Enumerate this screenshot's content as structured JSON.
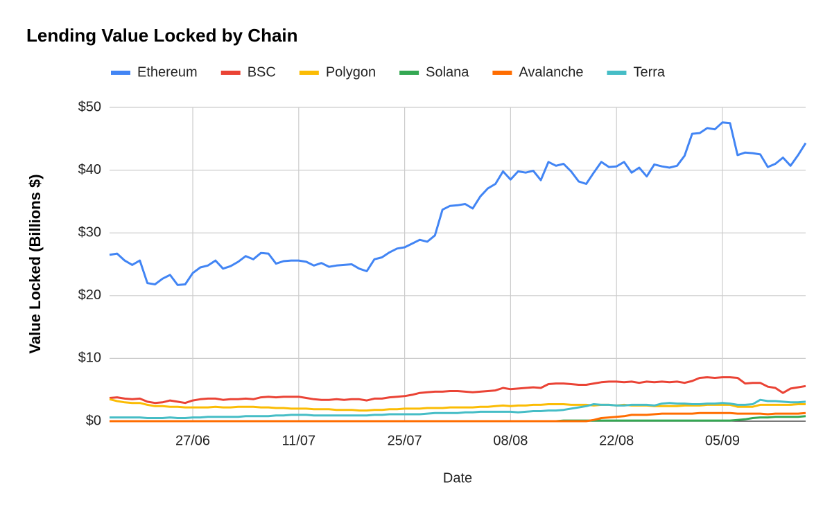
{
  "chart_data": {
    "type": "line",
    "title": "Lending Value Locked by Chain",
    "x_label": "Date",
    "y_label": "Value Locked (Billions $)",
    "categories": [
      null,
      null,
      null,
      null,
      null,
      null,
      null,
      null,
      null,
      null,
      null,
      "27/06",
      null,
      null,
      null,
      null,
      null,
      null,
      null,
      null,
      null,
      null,
      null,
      null,
      null,
      "11/07",
      null,
      null,
      null,
      null,
      null,
      null,
      null,
      null,
      null,
      null,
      null,
      null,
      null,
      "25/07",
      null,
      null,
      null,
      null,
      null,
      null,
      null,
      null,
      null,
      null,
      null,
      null,
      null,
      "08/08",
      null,
      null,
      null,
      null,
      null,
      null,
      null,
      null,
      null,
      null,
      null,
      null,
      null,
      "22/08",
      null,
      null,
      null,
      null,
      null,
      null,
      null,
      null,
      null,
      null,
      null,
      null,
      null,
      "05/09",
      null,
      null,
      null,
      null,
      null,
      null,
      null,
      null,
      null,
      null,
      null
    ],
    "ylim": [
      0,
      50
    ],
    "yticks": [
      {
        "value": 0,
        "label": "$0"
      },
      {
        "value": 10,
        "label": "$10"
      },
      {
        "value": 20,
        "label": "$20"
      },
      {
        "value": 30,
        "label": "$30"
      },
      {
        "value": 40,
        "label": "$40"
      },
      {
        "value": 50,
        "label": "$50"
      }
    ],
    "grid": true,
    "legend": "top",
    "series": [
      {
        "name": "Ethereum",
        "color": "#4285f4",
        "values": [
          26.5,
          26.7,
          25.6,
          24.9,
          25.6,
          22.0,
          21.8,
          22.7,
          23.3,
          21.7,
          21.8,
          23.6,
          24.5,
          24.8,
          25.6,
          24.3,
          24.7,
          25.4,
          26.3,
          25.8,
          26.8,
          26.7,
          25.1,
          25.5,
          25.6,
          25.6,
          25.4,
          24.8,
          25.2,
          24.6,
          24.8,
          24.9,
          25.0,
          24.3,
          23.9,
          25.8,
          26.1,
          26.9,
          27.5,
          27.7,
          28.3,
          28.9,
          28.6,
          29.6,
          33.7,
          34.3,
          34.4,
          34.6,
          33.9,
          35.8,
          37.1,
          37.8,
          39.8,
          38.5,
          39.8,
          39.6,
          39.9,
          38.4,
          41.3,
          40.7,
          41.0,
          39.8,
          38.2,
          37.8,
          39.6,
          41.3,
          40.5,
          40.6,
          41.3,
          39.6,
          40.4,
          39.0,
          40.9,
          40.6,
          40.4,
          40.7,
          42.3,
          45.8,
          45.9,
          46.7,
          46.5,
          47.6,
          47.5,
          42.4,
          42.8,
          42.7,
          42.5,
          40.5,
          41.0,
          42.0,
          40.7,
          42.4,
          44.3
        ]
      },
      {
        "name": "BSC",
        "color": "#ea4335",
        "values": [
          3.7,
          3.8,
          3.6,
          3.5,
          3.6,
          3.1,
          2.9,
          3.0,
          3.3,
          3.1,
          2.9,
          3.3,
          3.5,
          3.6,
          3.6,
          3.4,
          3.5,
          3.5,
          3.6,
          3.5,
          3.8,
          3.9,
          3.8,
          3.9,
          3.9,
          3.9,
          3.7,
          3.5,
          3.4,
          3.4,
          3.5,
          3.4,
          3.5,
          3.5,
          3.3,
          3.6,
          3.6,
          3.8,
          3.9,
          4.0,
          4.2,
          4.5,
          4.6,
          4.7,
          4.7,
          4.8,
          4.8,
          4.7,
          4.6,
          4.7,
          4.8,
          4.9,
          5.3,
          5.1,
          5.2,
          5.3,
          5.4,
          5.3,
          5.9,
          6.0,
          6.0,
          5.9,
          5.8,
          5.8,
          6.0,
          6.2,
          6.3,
          6.3,
          6.2,
          6.3,
          6.1,
          6.3,
          6.2,
          6.3,
          6.2,
          6.3,
          6.1,
          6.4,
          6.9,
          7.0,
          6.9,
          7.0,
          7.0,
          6.9,
          6.0,
          6.1,
          6.1,
          5.5,
          5.3,
          4.5,
          5.2,
          5.4,
          5.6
        ]
      },
      {
        "name": "Polygon",
        "color": "#fbbc04",
        "values": [
          3.5,
          3.2,
          3.0,
          2.9,
          2.9,
          2.6,
          2.4,
          2.4,
          2.3,
          2.3,
          2.2,
          2.2,
          2.2,
          2.2,
          2.3,
          2.2,
          2.2,
          2.3,
          2.3,
          2.3,
          2.2,
          2.2,
          2.1,
          2.1,
          2.0,
          2.0,
          2.0,
          1.9,
          1.9,
          1.9,
          1.8,
          1.8,
          1.8,
          1.7,
          1.7,
          1.8,
          1.8,
          1.9,
          1.9,
          2.0,
          2.0,
          2.0,
          2.1,
          2.1,
          2.1,
          2.2,
          2.2,
          2.2,
          2.2,
          2.3,
          2.3,
          2.4,
          2.5,
          2.4,
          2.5,
          2.5,
          2.6,
          2.6,
          2.7,
          2.7,
          2.7,
          2.6,
          2.6,
          2.6,
          2.5,
          2.6,
          2.6,
          2.5,
          2.6,
          2.5,
          2.5,
          2.5,
          2.4,
          2.4,
          2.4,
          2.4,
          2.5,
          2.5,
          2.5,
          2.6,
          2.6,
          2.6,
          2.6,
          2.3,
          2.3,
          2.3,
          2.6,
          2.6,
          2.6,
          2.6,
          2.6,
          2.7,
          2.7
        ]
      },
      {
        "name": "Solana",
        "color": "#34a853",
        "values": [
          0,
          0,
          0,
          0,
          0,
          0,
          0,
          0,
          0,
          0,
          0,
          0,
          0,
          0,
          0,
          0,
          0,
          0,
          0,
          0,
          0,
          0,
          0,
          0,
          0,
          0,
          0,
          0,
          0,
          0,
          0,
          0,
          0,
          0,
          0,
          0,
          0,
          0,
          0,
          0,
          0,
          0,
          0,
          0,
          0,
          0,
          0,
          0,
          0,
          0,
          0,
          0,
          0,
          0,
          0,
          0,
          0,
          0,
          0,
          0,
          0.1,
          0.1,
          0.1,
          0.1,
          0.1,
          0.1,
          0.1,
          0.1,
          0.1,
          0.1,
          0.1,
          0.1,
          0.1,
          0.1,
          0.1,
          0.1,
          0.1,
          0.1,
          0.1,
          0.1,
          0.1,
          0.1,
          0.1,
          0.2,
          0.3,
          0.5,
          0.6,
          0.6,
          0.7,
          0.7,
          0.7,
          0.7,
          0.8
        ]
      },
      {
        "name": "Avalanche",
        "color": "#ff6d01",
        "values": [
          0,
          0,
          0,
          0,
          0,
          0,
          0,
          0,
          0,
          0,
          0,
          0,
          0,
          0,
          0,
          0,
          0,
          0,
          0,
          0,
          0,
          0,
          0,
          0,
          0,
          0,
          0,
          0,
          0,
          0,
          0,
          0,
          0,
          0,
          0,
          0,
          0,
          0,
          0,
          0,
          0,
          0,
          0,
          0,
          0,
          0,
          0,
          0,
          0,
          0,
          0,
          0,
          0,
          0,
          0,
          0,
          0,
          0,
          0,
          0,
          0,
          0,
          0,
          0,
          0.2,
          0.5,
          0.6,
          0.7,
          0.8,
          1.0,
          1.0,
          1.0,
          1.1,
          1.2,
          1.2,
          1.2,
          1.2,
          1.2,
          1.3,
          1.3,
          1.3,
          1.3,
          1.3,
          1.2,
          1.2,
          1.2,
          1.2,
          1.1,
          1.2,
          1.2,
          1.2,
          1.2,
          1.3
        ]
      },
      {
        "name": "Terra",
        "color": "#46bdc6",
        "values": [
          0.6,
          0.6,
          0.6,
          0.6,
          0.6,
          0.5,
          0.5,
          0.5,
          0.6,
          0.5,
          0.5,
          0.6,
          0.6,
          0.7,
          0.7,
          0.7,
          0.7,
          0.7,
          0.8,
          0.8,
          0.8,
          0.8,
          0.9,
          0.9,
          1.0,
          1.0,
          1.0,
          0.9,
          0.9,
          0.9,
          0.9,
          0.9,
          0.9,
          0.9,
          0.9,
          1.0,
          1.0,
          1.1,
          1.1,
          1.1,
          1.1,
          1.1,
          1.2,
          1.3,
          1.3,
          1.3,
          1.3,
          1.4,
          1.4,
          1.5,
          1.5,
          1.5,
          1.5,
          1.5,
          1.4,
          1.5,
          1.6,
          1.6,
          1.7,
          1.7,
          1.8,
          2.0,
          2.2,
          2.4,
          2.7,
          2.6,
          2.6,
          2.5,
          2.5,
          2.6,
          2.6,
          2.6,
          2.5,
          2.8,
          2.9,
          2.8,
          2.8,
          2.7,
          2.7,
          2.8,
          2.8,
          2.9,
          2.8,
          2.6,
          2.6,
          2.7,
          3.4,
          3.2,
          3.2,
          3.1,
          3.0,
          3.0,
          3.1
        ]
      }
    ]
  }
}
